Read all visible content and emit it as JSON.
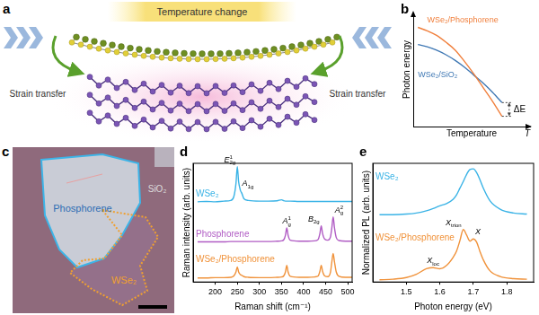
{
  "panel_labels": [
    "a",
    "b",
    "c",
    "d",
    "e"
  ],
  "diagram": {
    "heading": "Temperature change",
    "labels": [
      "Strain transfer",
      "Strain transfer"
    ]
  },
  "micrograph": {
    "labels": [
      "Phosphorene",
      "WSe₂",
      "SiO₂"
    ]
  },
  "chart_data": [
    {
      "type": "line",
      "xlabel": "Temperature",
      "ylabel": "Photon energy",
      "x_end_label": "T",
      "gap_label": "ΔE",
      "x": [
        0.04,
        0.12,
        0.2,
        0.28,
        0.36,
        0.44,
        0.52,
        0.6,
        0.68,
        0.76
      ],
      "series": [
        {
          "name": "WSe₂/Phosphorene",
          "color": "#f07f3c",
          "values": [
            0.87,
            0.84,
            0.8,
            0.74,
            0.67,
            0.57,
            0.46,
            0.34,
            0.22,
            0.09
          ]
        },
        {
          "name": "WSe₂/SiO₂",
          "color": "#3f78b4",
          "values": [
            0.72,
            0.7,
            0.67,
            0.63,
            0.58,
            0.52,
            0.45,
            0.38,
            0.3,
            0.21
          ]
        }
      ],
      "xlim": [
        0,
        1
      ],
      "ylim": [
        0,
        1
      ],
      "tick_labels": false,
      "grid": false
    },
    {
      "type": "line",
      "xlabel": "Raman shift (cm⁻¹)",
      "ylabel": "Raman intensity (arb. units)",
      "x": [
        160,
        180,
        200,
        220,
        235,
        242,
        247,
        250,
        253,
        257,
        260,
        265,
        275,
        300,
        320,
        340,
        350,
        355,
        359,
        362,
        365,
        370,
        390,
        410,
        425,
        433,
        437,
        440,
        443,
        448,
        455,
        461,
        464,
        467,
        470,
        474,
        480,
        495,
        510
      ],
      "series": [
        {
          "name": "WSe₂",
          "color": "#3ab3e6",
          "values": [
            2.4,
            2.41,
            2.4,
            2.42,
            2.44,
            2.55,
            2.95,
            3.45,
            3.0,
            2.74,
            2.66,
            2.49,
            2.44,
            2.42,
            2.42,
            2.43,
            2.46,
            2.43,
            2.42,
            2.42,
            2.42,
            2.42,
            2.41,
            2.41,
            2.41,
            2.41,
            2.41,
            2.41,
            2.41,
            2.41,
            2.41,
            2.41,
            2.41,
            2.41,
            2.41,
            2.41,
            2.41,
            2.41,
            2.41
          ],
          "peaks": [
            {
              "x": 250,
              "text": "E",
              "sup": "1",
              "sub": "2g"
            },
            {
              "x": 257,
              "text": "A",
              "sub": "1g"
            }
          ]
        },
        {
          "name": "Phosphorene",
          "color": "#b05cc4",
          "values": [
            1.2,
            1.2,
            1.2,
            1.2,
            1.21,
            1.21,
            1.21,
            1.21,
            1.21,
            1.21,
            1.21,
            1.21,
            1.21,
            1.21,
            1.21,
            1.22,
            1.23,
            1.26,
            1.4,
            1.62,
            1.4,
            1.25,
            1.22,
            1.22,
            1.23,
            1.27,
            1.45,
            1.68,
            1.45,
            1.28,
            1.25,
            1.35,
            1.62,
            1.95,
            1.62,
            1.33,
            1.24,
            1.22,
            1.22
          ],
          "peaks": [
            {
              "x": 362,
              "text": "A",
              "sup": "1",
              "sub": "g"
            },
            {
              "x": 440,
              "text": "B",
              "sub": "2g"
            },
            {
              "x": 467,
              "text": "A",
              "sup": "2",
              "sub": "g"
            }
          ]
        },
        {
          "name": "WSe₂/Phosphorene",
          "color": "#f0923a",
          "values": [
            0.12,
            0.12,
            0.13,
            0.13,
            0.14,
            0.18,
            0.3,
            0.45,
            0.3,
            0.22,
            0.2,
            0.16,
            0.14,
            0.13,
            0.13,
            0.14,
            0.15,
            0.18,
            0.3,
            0.5,
            0.3,
            0.17,
            0.14,
            0.14,
            0.15,
            0.18,
            0.32,
            0.5,
            0.32,
            0.18,
            0.16,
            0.3,
            0.6,
            0.85,
            0.6,
            0.3,
            0.17,
            0.14,
            0.14
          ]
        }
      ],
      "xlim": [
        150,
        510
      ],
      "xticks": [
        200,
        250,
        300,
        350,
        400,
        450,
        500
      ],
      "ylim": [
        0,
        3.55
      ],
      "tick_labels": "x",
      "grid": false
    },
    {
      "type": "line",
      "xlabel": "Photon energy (eV)",
      "ylabel": "Normalized PL (arb. units)",
      "x": [
        1.42,
        1.46,
        1.5,
        1.53,
        1.56,
        1.58,
        1.6,
        1.62,
        1.64,
        1.65,
        1.66,
        1.67,
        1.68,
        1.69,
        1.7,
        1.71,
        1.72,
        1.73,
        1.75,
        1.78,
        1.82,
        1.86
      ],
      "series": [
        {
          "name": "WSe₂",
          "color": "#3ab3e6",
          "values": [
            1.22,
            1.22,
            1.23,
            1.25,
            1.29,
            1.33,
            1.38,
            1.42,
            1.5,
            1.58,
            1.7,
            1.82,
            1.95,
            2.04,
            2.05,
            1.98,
            1.85,
            1.7,
            1.47,
            1.32,
            1.25,
            1.23
          ]
        },
        {
          "name": "WSe₂/Phosphorene",
          "color": "#f0923a",
          "values": [
            0.04,
            0.05,
            0.08,
            0.14,
            0.24,
            0.26,
            0.24,
            0.3,
            0.45,
            0.56,
            0.75,
            0.95,
            0.85,
            0.74,
            0.78,
            0.72,
            0.55,
            0.4,
            0.2,
            0.1,
            0.06,
            0.05
          ],
          "peaks": [
            {
              "x": 1.58,
              "text": "X",
              "sub": "loc"
            },
            {
              "x": 1.67,
              "text": "X",
              "sub": "trion"
            },
            {
              "x": 1.7,
              "text": "X"
            }
          ]
        }
      ],
      "xlim": [
        1.4,
        1.88
      ],
      "xticks": [
        1.5,
        1.6,
        1.7,
        1.8
      ],
      "ylim": [
        0,
        2.15
      ],
      "tick_labels": "x",
      "grid": false
    }
  ]
}
